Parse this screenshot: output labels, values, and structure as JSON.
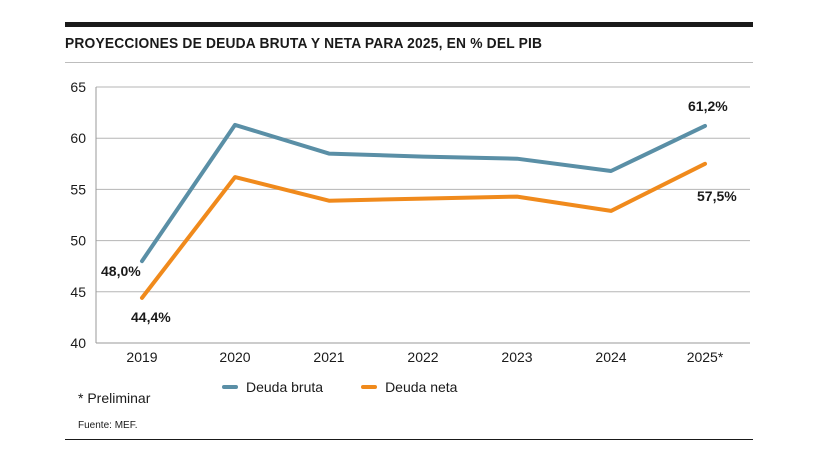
{
  "title": "PROYECCIONES DE DEUDA BRUTA Y NETA PARA 2025, EN % DEL PIB",
  "chart_data": {
    "type": "line",
    "categories": [
      "2019",
      "2020",
      "2021",
      "2022",
      "2023",
      "2024",
      "2025*"
    ],
    "series": [
      {
        "name": "Deuda bruta",
        "color": "#5a8fa6",
        "values": [
          48.0,
          61.3,
          58.5,
          58.2,
          58.0,
          56.8,
          61.2
        ]
      },
      {
        "name": "Deuda neta",
        "color": "#f08a1c",
        "values": [
          44.4,
          56.2,
          53.9,
          54.1,
          54.3,
          52.9,
          57.5
        ]
      }
    ],
    "ylim": [
      40,
      65
    ],
    "yticks": [
      40,
      45,
      50,
      55,
      60,
      65
    ],
    "grid": true,
    "annotations": [
      "48,0%",
      "44,4%",
      "61,2%",
      "57,5%"
    ]
  },
  "legend": {
    "bruta": "Deuda bruta",
    "neta": "Deuda neta"
  },
  "footnote": "* Preliminar",
  "source": "Fuente: MEF."
}
